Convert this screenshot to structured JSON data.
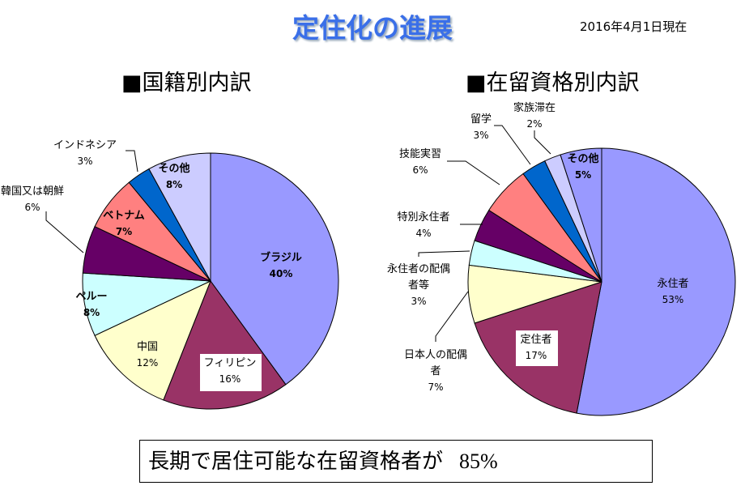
{
  "title": "定住化の進展",
  "date": "2016年4月1日現在",
  "summary": {
    "text": "長期で居住可能な在留資格者が",
    "value": "85%"
  },
  "chart_data": [
    {
      "type": "pie",
      "title": "■国籍別内訳",
      "slices": [
        {
          "label": "ブラジル",
          "value": 40,
          "color": "#9999ff"
        },
        {
          "label": "フィリピン",
          "value": 16,
          "color": "#993366"
        },
        {
          "label": "中国",
          "value": 12,
          "color": "#ffffcc"
        },
        {
          "label": "ペルー",
          "value": 8,
          "color": "#ccffff"
        },
        {
          "label": "韓国又は朝鮮",
          "value": 6,
          "color": "#660066"
        },
        {
          "label": "ベトナム",
          "value": 7,
          "color": "#ff8080"
        },
        {
          "label": "インドネシア",
          "value": 3,
          "color": "#0066cc"
        },
        {
          "label": "その他",
          "value": 8,
          "color": "#ccccff"
        }
      ]
    },
    {
      "type": "pie",
      "title": "■在留資格別内訳",
      "slices": [
        {
          "label": "永住者",
          "value": 53,
          "color": "#9999ff"
        },
        {
          "label": "定住者",
          "value": 17,
          "color": "#993366"
        },
        {
          "label": "日本人の配偶者",
          "value": 7,
          "color": "#ffffcc"
        },
        {
          "label": "永住者の配偶者等",
          "value": 3,
          "color": "#ccffff"
        },
        {
          "label": "特別永住者",
          "value": 4,
          "color": "#660066"
        },
        {
          "label": "技能実習",
          "value": 6,
          "color": "#ff8080"
        },
        {
          "label": "留学",
          "value": 3,
          "color": "#0066cc"
        },
        {
          "label": "家族滞在",
          "value": 2,
          "color": "#ccccff"
        },
        {
          "label": "その他",
          "value": 5,
          "color": "#9999ff"
        }
      ]
    }
  ]
}
